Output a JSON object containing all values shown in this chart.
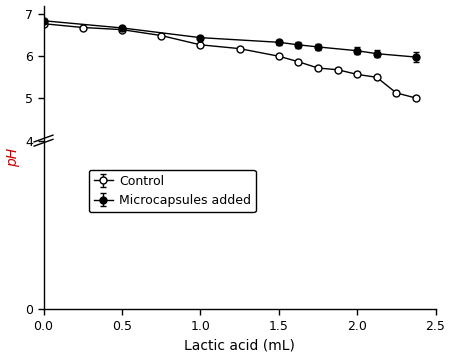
{
  "control_x": [
    0.0,
    0.25,
    0.5,
    0.75,
    1.0,
    1.25,
    1.5,
    1.625,
    1.75,
    1.875,
    2.0,
    2.125,
    2.25,
    2.375
  ],
  "control_y": [
    6.77,
    6.68,
    6.63,
    6.49,
    6.27,
    6.18,
    6.0,
    5.87,
    5.72,
    5.68,
    5.57,
    5.5,
    5.13,
    5.01
  ],
  "control_yerr": [
    0.04,
    0.03,
    0.03,
    0.03,
    0.03,
    0.03,
    0.03,
    0.04,
    0.04,
    0.04,
    0.05,
    0.05,
    0.05,
    0.04
  ],
  "micro_x": [
    0.0,
    0.5,
    1.0,
    1.5,
    1.625,
    1.75,
    2.0,
    2.125,
    2.375
  ],
  "micro_y": [
    6.84,
    6.67,
    6.44,
    6.33,
    6.27,
    6.22,
    6.13,
    6.06,
    5.98
  ],
  "micro_yerr": [
    0.03,
    0.03,
    0.05,
    0.055,
    0.065,
    0.065,
    0.085,
    0.085,
    0.12
  ],
  "xlabel": "Lactic acid (mL)",
  "ylabel": "pH",
  "xlim": [
    0.0,
    2.5
  ],
  "ylim": [
    0,
    7.2
  ],
  "yticks": [
    0,
    4,
    5,
    6,
    7
  ],
  "xticks": [
    0.0,
    0.5,
    1.0,
    1.5,
    2.0,
    2.5
  ],
  "legend_labels": [
    "Control",
    "Microcapsules added"
  ],
  "line_color": "#000000",
  "figsize": [
    4.51,
    3.58
  ],
  "dpi": 100,
  "break_y": 4.0,
  "break_height": 0.25
}
